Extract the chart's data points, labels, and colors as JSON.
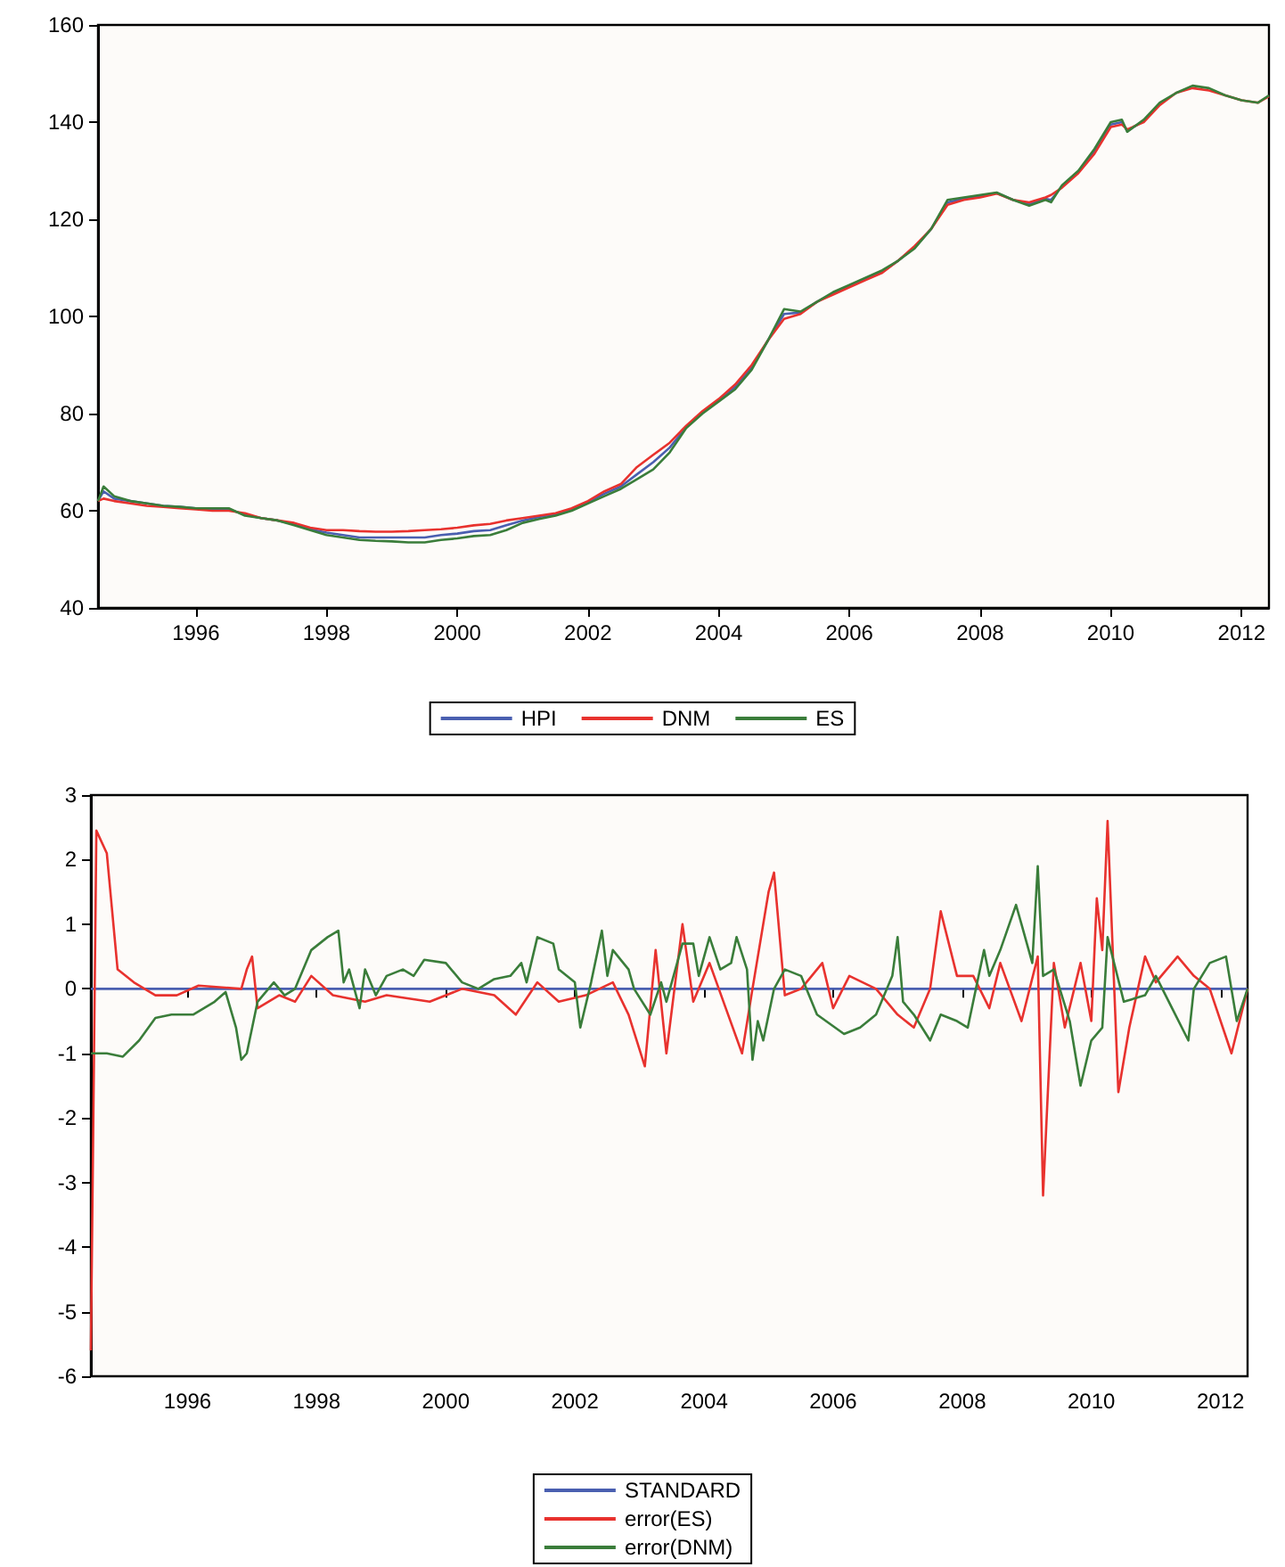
{
  "chart_data": [
    {
      "type": "line",
      "xlim": [
        "1995-01",
        "2012-12"
      ],
      "ylim": [
        40,
        160
      ],
      "yticks": [
        40,
        60,
        80,
        100,
        120,
        140,
        160
      ],
      "xticks": [
        {
          "value": "1996-07",
          "label": "1996"
        },
        {
          "value": "1998-07",
          "label": "1998"
        },
        {
          "value": "2000-07",
          "label": "2000"
        },
        {
          "value": "2002-07",
          "label": "2002"
        },
        {
          "value": "2004-07",
          "label": "2004"
        },
        {
          "value": "2006-07",
          "label": "2006"
        },
        {
          "value": "2008-07",
          "label": "2008"
        },
        {
          "value": "2010-07",
          "label": "2010"
        },
        {
          "value": "2012-07",
          "label": "2012"
        }
      ],
      "x": [
        "1995-01",
        "1995-02",
        "1995-04",
        "1995-07",
        "1995-10",
        "1996-01",
        "1996-04",
        "1996-07",
        "1996-10",
        "1997-01",
        "1997-04",
        "1997-07",
        "1997-10",
        "1998-01",
        "1998-04",
        "1998-07",
        "1998-10",
        "1999-01",
        "1999-04",
        "1999-07",
        "1999-10",
        "2000-01",
        "2000-04",
        "2000-07",
        "2000-10",
        "2001-01",
        "2001-04",
        "2001-07",
        "2001-10",
        "2002-01",
        "2002-04",
        "2002-07",
        "2002-10",
        "2003-01",
        "2003-04",
        "2003-07",
        "2003-10",
        "2004-01",
        "2004-04",
        "2004-07",
        "2004-10",
        "2005-01",
        "2005-04",
        "2005-07",
        "2005-10",
        "2006-01",
        "2006-04",
        "2006-07",
        "2006-10",
        "2007-01",
        "2007-04",
        "2007-07",
        "2007-10",
        "2008-01",
        "2008-04",
        "2008-07",
        "2008-10",
        "2009-01",
        "2009-04",
        "2009-07",
        "2009-08",
        "2009-10",
        "2010-01",
        "2010-04",
        "2010-07",
        "2010-09",
        "2010-10",
        "2011-01",
        "2011-04",
        "2011-07",
        "2011-10",
        "2012-01",
        "2012-04",
        "2012-07",
        "2012-10",
        "2012-12"
      ],
      "series": [
        {
          "name": "HPI",
          "color": "#4a5fb0",
          "values": [
            62,
            64,
            62.5,
            62,
            61.5,
            61,
            60.8,
            60.5,
            60.3,
            60.3,
            59.2,
            58.5,
            58,
            57.2,
            56.2,
            55.5,
            55,
            54.5,
            54.5,
            54.5,
            54.5,
            54.5,
            55,
            55.3,
            55.8,
            56,
            57,
            58,
            58.7,
            59.3,
            60.3,
            61.8,
            63.5,
            65,
            67.5,
            70,
            73,
            77.2,
            80.2,
            82.7,
            85.5,
            89.5,
            95,
            100.5,
            100.8,
            103,
            104.8,
            106.2,
            107.8,
            109.2,
            111.5,
            114.2,
            118,
            123.5,
            124.2,
            124.8,
            125.4,
            124,
            123.1,
            124.2,
            124,
            126.8,
            129.8,
            134,
            139.5,
            140,
            138.2,
            140.2,
            null,
            null,
            null,
            null,
            null,
            null,
            null,
            null
          ]
        },
        {
          "name": "DNM",
          "color": "#e8322e",
          "values": [
            62,
            62.5,
            62,
            61.5,
            61,
            60.8,
            60.5,
            60.3,
            60,
            60,
            59.5,
            58.5,
            58,
            57.5,
            56.5,
            56,
            56,
            55.8,
            55.7,
            55.7,
            55.8,
            56,
            56.2,
            56.5,
            57,
            57.3,
            58,
            58.5,
            59,
            59.5,
            60.5,
            62,
            64,
            65.5,
            69,
            71.5,
            74,
            77.5,
            80.5,
            83,
            86,
            90,
            95,
            99.5,
            100.5,
            103,
            104.5,
            106,
            107.5,
            109,
            111.5,
            114.5,
            118,
            123,
            124,
            124.5,
            125.3,
            124,
            123.5,
            124.5,
            125,
            126.5,
            129.5,
            133.5,
            139,
            139.5,
            138.5,
            140,
            143.5,
            146,
            147,
            146.5,
            145.5,
            144.5,
            144,
            145.3
          ]
        },
        {
          "name": "ES",
          "color": "#3a7d3a",
          "values": [
            62,
            65,
            63,
            62,
            61.5,
            61,
            60.8,
            60.5,
            60.5,
            60.5,
            59,
            58.5,
            58,
            57,
            56,
            55,
            54.5,
            54,
            53.8,
            53.7,
            53.5,
            53.5,
            54,
            54.3,
            54.8,
            55,
            56,
            57.5,
            58.3,
            59,
            60,
            61.5,
            63,
            64.5,
            66.5,
            68.5,
            72,
            77,
            80,
            82.5,
            85,
            89,
            95,
            101.5,
            101,
            103,
            105,
            106.5,
            108,
            109.5,
            111.5,
            114,
            118,
            124,
            124.5,
            125,
            125.5,
            124,
            122.8,
            124,
            123.5,
            127,
            130,
            134.5,
            140,
            140.5,
            138,
            140.5,
            144,
            146,
            147.5,
            147,
            145.5,
            144.5,
            144,
            145.5
          ]
        }
      ],
      "legend": "bottom"
    },
    {
      "type": "line",
      "xlim": [
        "1995-01",
        "2012-12"
      ],
      "ylim": [
        -6,
        3
      ],
      "yticks": [
        -6,
        -5,
        -4,
        -3,
        -2,
        -1,
        0,
        1,
        2,
        3
      ],
      "xticks": [
        {
          "value": "1996-07",
          "label": "1996"
        },
        {
          "value": "1998-07",
          "label": "1998"
        },
        {
          "value": "2000-07",
          "label": "2000"
        },
        {
          "value": "2002-07",
          "label": "2002"
        },
        {
          "value": "2004-07",
          "label": "2004"
        },
        {
          "value": "2006-07",
          "label": "2006"
        },
        {
          "value": "2008-07",
          "label": "2008"
        },
        {
          "value": "2010-07",
          "label": "2010"
        },
        {
          "value": "2012-07",
          "label": "2012"
        }
      ],
      "series": [
        {
          "name": "STANDARD",
          "color": "#4a5fb0",
          "x": [
            "1995-01",
            "2012-12"
          ],
          "values": [
            0,
            0
          ]
        },
        {
          "name": "error(ES)",
          "color": "#e8322e",
          "x": [
            "1995-01",
            "1995-02",
            "1995-04",
            "1995-06",
            "1995-09",
            "1996-01",
            "1996-05",
            "1996-09",
            "1997-05",
            "1997-06",
            "1997-07",
            "1997-08",
            "1997-12",
            "1998-03",
            "1998-06",
            "1998-10",
            "1999-04",
            "1999-08",
            "2000-04",
            "2000-10",
            "2001-04",
            "2001-08",
            "2001-12",
            "2002-04",
            "2002-09",
            "2003-02",
            "2003-05",
            "2003-08",
            "2003-10",
            "2003-12",
            "2004-03",
            "2004-05",
            "2004-08",
            "2004-11",
            "2005-02",
            "2005-04",
            "2005-07",
            "2005-08",
            "2005-10",
            "2006-01",
            "2006-05",
            "2006-07",
            "2006-10",
            "2007-03",
            "2007-07",
            "2007-10",
            "2008-01",
            "2008-03",
            "2008-06",
            "2008-09",
            "2008-12",
            "2009-02",
            "2009-06",
            "2009-09",
            "2009-10",
            "2009-12",
            "2010-02",
            "2010-05",
            "2010-07",
            "2010-08",
            "2010-09",
            "2010-10",
            "2010-12",
            "2011-02",
            "2011-05",
            "2011-07",
            "2011-11",
            "2012-02",
            "2012-05",
            "2012-09",
            "2012-12"
          ],
          "values": [
            -5.6,
            2.45,
            2.1,
            0.3,
            0.1,
            -0.1,
            -0.1,
            0.05,
            0,
            0.3,
            0.5,
            -0.3,
            -0.1,
            -0.2,
            0.2,
            -0.1,
            -0.2,
            -0.1,
            -0.2,
            0,
            -0.1,
            -0.4,
            0.1,
            -0.2,
            -0.1,
            0.1,
            -0.4,
            -1.2,
            0.6,
            -1,
            1,
            -0.2,
            0.4,
            -0.3,
            -1,
            0,
            1.5,
            1.8,
            -0.1,
            0,
            0.4,
            -0.3,
            0.2,
            0,
            -0.4,
            -0.6,
            0,
            1.2,
            0.2,
            0.2,
            -0.3,
            0.4,
            -0.5,
            0.5,
            -3.2,
            0.4,
            -0.6,
            0.4,
            -0.5,
            1.4,
            0.6,
            2.6,
            -1.6,
            -0.6,
            0.5,
            0.1,
            0.5,
            0.2,
            0,
            -1,
            0
          ]
        },
        {
          "name": "error(DNM)",
          "color": "#3a7d3a",
          "x": [
            "1995-01",
            "1995-04",
            "1995-07",
            "1995-10",
            "1996-01",
            "1996-04",
            "1996-08",
            "1996-12",
            "1997-02",
            "1997-04",
            "1997-05",
            "1997-06",
            "1997-08",
            "1997-11",
            "1998-01",
            "1998-03",
            "1998-06",
            "1998-09",
            "1998-11",
            "1998-12",
            "1999-01",
            "1999-03",
            "1999-04",
            "1999-06",
            "1999-08",
            "1999-11",
            "2000-01",
            "2000-03",
            "2000-07",
            "2000-10",
            "2001-01",
            "2001-04",
            "2001-07",
            "2001-09",
            "2001-10",
            "2001-12",
            "2002-03",
            "2002-04",
            "2002-07",
            "2002-08",
            "2002-10",
            "2002-12",
            "2003-01",
            "2003-02",
            "2003-05",
            "2003-06",
            "2003-09",
            "2003-11",
            "2003-12",
            "2004-03",
            "2004-05",
            "2004-06",
            "2004-08",
            "2004-10",
            "2004-12",
            "2005-01",
            "2005-03",
            "2005-04",
            "2005-05",
            "2005-06",
            "2005-08",
            "2005-10",
            "2006-01",
            "2006-04",
            "2006-09",
            "2006-12",
            "2007-03",
            "2007-06",
            "2007-07",
            "2007-08",
            "2007-10",
            "2008-01",
            "2008-03",
            "2008-06",
            "2008-08",
            "2008-11",
            "2008-12",
            "2009-02",
            "2009-05",
            "2009-06",
            "2009-08",
            "2009-09",
            "2009-10",
            "2009-12",
            "2010-03",
            "2010-05",
            "2010-07",
            "2010-09",
            "2010-10",
            "2011-01",
            "2011-05",
            "2011-07",
            "2011-10",
            "2012-01",
            "2012-02",
            "2012-05",
            "2012-08",
            "2012-10",
            "2012-12"
          ],
          "values": [
            -1,
            -1,
            -1.05,
            -0.8,
            -0.45,
            -0.4,
            -0.4,
            -0.2,
            -0.05,
            -0.6,
            -1.1,
            -1,
            -0.2,
            0.1,
            -0.1,
            0,
            0.6,
            0.8,
            0.9,
            0.1,
            0.3,
            -0.3,
            0.3,
            -0.1,
            0.2,
            0.3,
            0.2,
            0.45,
            0.4,
            0.1,
            0,
            0.15,
            0.2,
            0.4,
            0.1,
            0.8,
            0.7,
            0.3,
            0.1,
            -0.6,
            0.1,
            0.9,
            0.2,
            0.6,
            0.3,
            0,
            -0.4,
            0.1,
            -0.2,
            0.7,
            0.7,
            0.2,
            0.8,
            0.3,
            0.4,
            0.8,
            0.3,
            -1.1,
            -0.5,
            -0.8,
            0,
            0.3,
            0.2,
            -0.4,
            -0.7,
            -0.6,
            -0.4,
            0.2,
            0.8,
            -0.2,
            -0.4,
            -0.8,
            -0.4,
            -0.5,
            -0.6,
            0.6,
            0.2,
            0.6,
            1.3,
            1,
            0.4,
            1.9,
            0.2,
            0.3,
            -0.5,
            -1.5,
            -0.8,
            -0.6,
            0.8,
            -0.2,
            -0.1,
            0.2,
            -0.3,
            -0.8,
            0,
            0.4,
            0.5,
            -0.5,
            0
          ]
        }
      ],
      "legend": "bottom"
    }
  ]
}
